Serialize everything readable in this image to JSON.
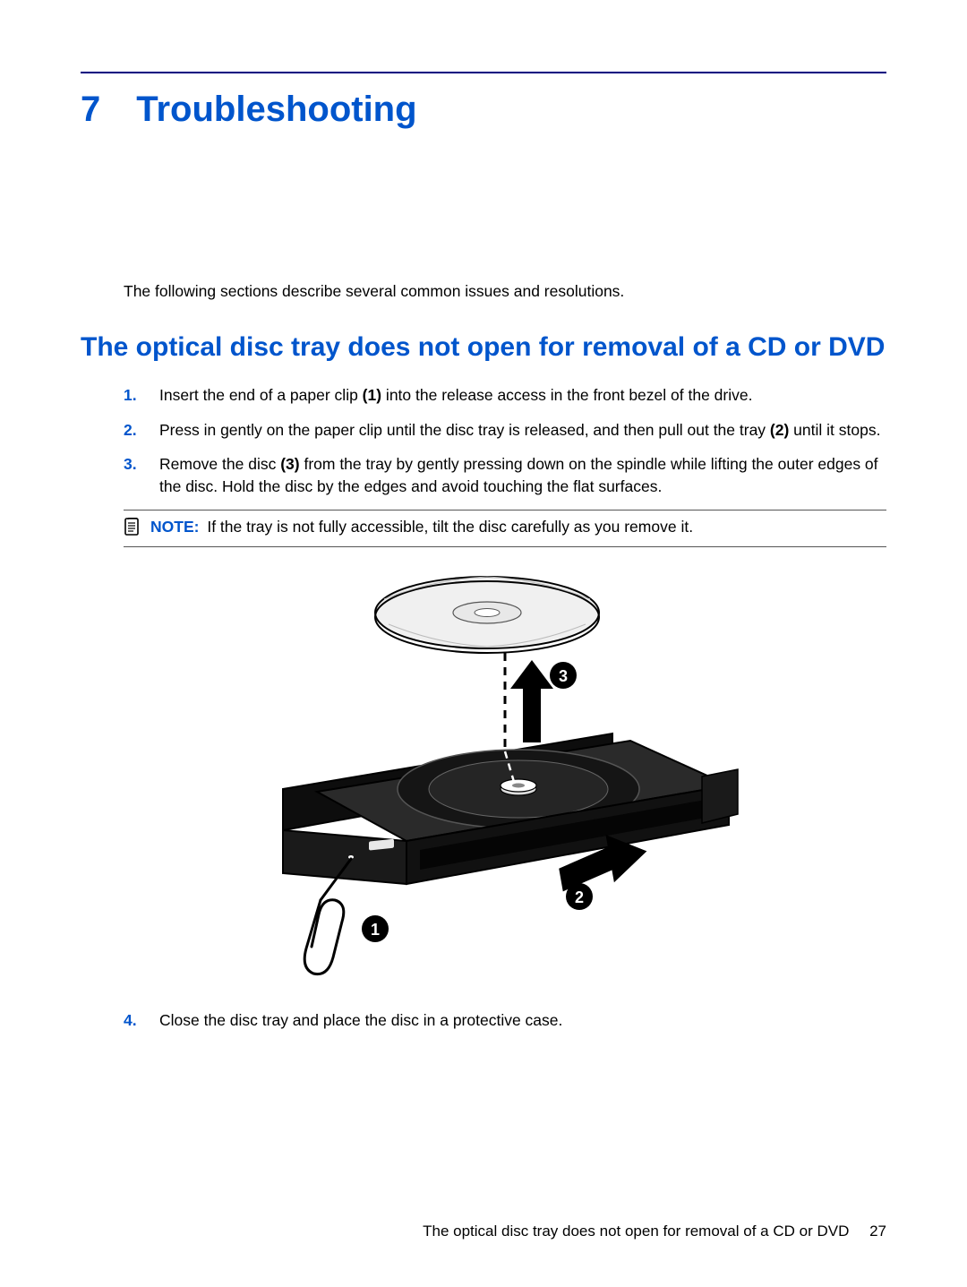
{
  "colors": {
    "accent": "#0055cc",
    "rule": "#000080",
    "text": "#000000",
    "callout_fill": "#000000",
    "callout_text": "#ffffff"
  },
  "chapter": {
    "number": "7",
    "title": "Troubleshooting"
  },
  "intro": "The following sections describe several common issues and resolutions.",
  "section_heading": "The optical disc tray does not open for removal of a CD or DVD",
  "steps": [
    {
      "n": "1.",
      "html": "Insert the end of a paper clip <b>(1)</b> into the release access in the front bezel of the drive."
    },
    {
      "n": "2.",
      "html": "Press in gently on the paper clip until the disc tray is released, and then pull out the tray <b>(2)</b> until it stops."
    },
    {
      "n": "3.",
      "html": "Remove the disc <b>(3)</b> from the tray by gently pressing down on the spindle while lifting the outer edges of the disc. Hold the disc by the edges and avoid touching the flat surfaces."
    }
  ],
  "note": {
    "label": "NOTE:",
    "text": "If the tray is not fully accessible, tilt the disc carefully as you remove it."
  },
  "step4": {
    "n": "4.",
    "text": "Close the disc tray and place the disc in a protective case."
  },
  "figure": {
    "callouts": [
      "1",
      "2",
      "3"
    ]
  },
  "footer": {
    "text": "The optical disc tray does not open for removal of a CD or DVD",
    "page": "27"
  }
}
